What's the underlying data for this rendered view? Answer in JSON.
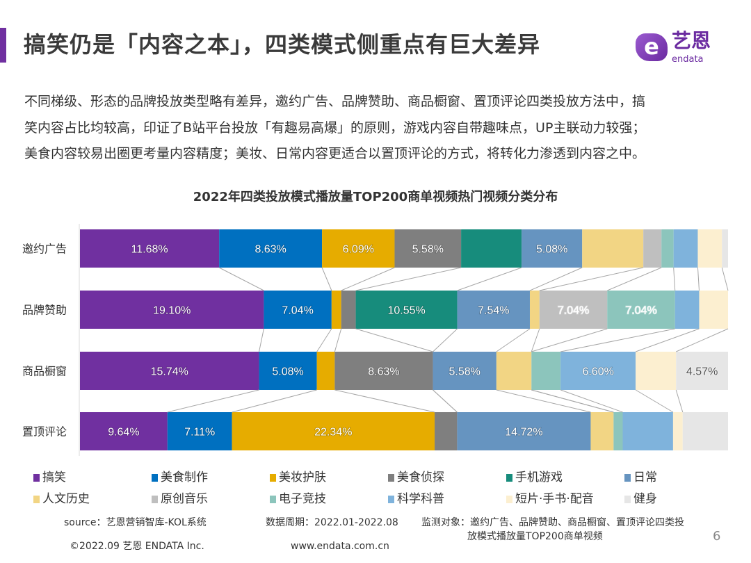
{
  "header": {
    "title": "搞笑仍是「内容之本」，四类模式侧重点有巨大差异",
    "logo_cn": "艺恩",
    "logo_en": "endata",
    "accent_color": "#7030a0"
  },
  "description": [
    "不同梯级、形态的品牌投放类型略有差异，邀约广告、品牌赞助、商品橱窗、置顶评论四类投放方法中，搞",
    "笑内容占比均较高，印证了B站平台投放「有趣易高爆」的原则，游戏内容自带趣味点，UP主联动力较强；",
    "美食内容较易出圈更考量内容精度；美妆、日常内容更适合以置顶评论的方式，将转化力渗透到内容之中。"
  ],
  "chart_data": {
    "type": "bar",
    "orientation": "horizontal",
    "stacked": "percent",
    "title": "2022年四类投放模式播放量TOP200商单视频热门视频分类分布",
    "categories": [
      "邀约广告",
      "品牌赞助",
      "商品橱窗",
      "置顶评论"
    ],
    "legend_position": "bottom",
    "grid": false,
    "series": [
      {
        "name": "搞笑",
        "color": "#7030a0",
        "values": [
          11.68,
          19.1,
          15.74,
          9.64
        ],
        "labels": [
          "11.68%",
          "19.10%",
          "15.74%",
          "9.64%"
        ]
      },
      {
        "name": "美食制作",
        "color": "#0070c0",
        "values": [
          8.63,
          7.04,
          5.08,
          7.11
        ],
        "labels": [
          "8.63%",
          "7.04%",
          "5.08%",
          "7.11%"
        ]
      },
      {
        "name": "美妆护肤",
        "color": "#e6ac00",
        "values": [
          6.09,
          1.0,
          1.57,
          22.34
        ],
        "labels": [
          "6.09%",
          null,
          null,
          "22.34%"
        ]
      },
      {
        "name": "美食侦探",
        "color": "#7f7f7f",
        "values": [
          5.58,
          1.51,
          8.63,
          2.48
        ],
        "labels": [
          "5.58%",
          null,
          "8.63%",
          null
        ]
      },
      {
        "name": "手机游戏",
        "color": "#178c7c",
        "values": [
          5.08,
          10.55,
          0,
          0
        ],
        "labels": [
          null,
          "10.55%",
          null,
          null
        ]
      },
      {
        "name": "日常",
        "color": "#6694c0",
        "values": [
          5.08,
          7.54,
          5.58,
          14.72
        ],
        "labels": [
          "5.08%",
          "7.54%",
          "5.58%",
          "14.72%"
        ]
      },
      {
        "name": "人文历史",
        "color": "#f2d584",
        "values": [
          5.13,
          1.0,
          3.08,
          2.52
        ],
        "labels": [
          null,
          null,
          null,
          null
        ]
      },
      {
        "name": "原创音乐",
        "color": "#bfbfbf",
        "values": [
          1.52,
          7.04,
          0,
          0
        ],
        "labels": [
          null,
          "7.04%",
          null,
          null
        ]
      },
      {
        "name": "电子竞技",
        "color": "#8cc5bc",
        "values": [
          1.02,
          7.04,
          2.56,
          1.01
        ],
        "labels": [
          null,
          "7.04%",
          null,
          null
        ]
      },
      {
        "name": "科学科普",
        "color": "#7fb3dc",
        "values": [
          2.03,
          2.51,
          6.6,
          5.55
        ],
        "labels": [
          null,
          null,
          "6.60%",
          null
        ]
      },
      {
        "name": "短片·手书·配音",
        "color": "#fcefd0",
        "values": [
          2.03,
          3.0,
          3.55,
          1.06
        ],
        "labels": [
          null,
          null,
          null,
          null
        ]
      },
      {
        "name": "健身",
        "color": "#e6e6e6",
        "values": [
          0.51,
          0,
          4.57,
          5.0
        ],
        "labels": [
          null,
          null,
          "4.57%",
          null
        ]
      }
    ]
  },
  "footer": {
    "source": "source：艺恩营销智库-KOL系统",
    "period": "数据周期：2022.01-2022.08",
    "scope_line1": "监测对象：邀约广告、品牌赞助、商品橱窗、置顶评论四类投",
    "scope_line2": "放模式播放量TOP200商单视频",
    "copyright": "©2022.09 艺恩 ENDATA Inc.",
    "website": "www.endata.com.cn",
    "page_number": "6"
  }
}
